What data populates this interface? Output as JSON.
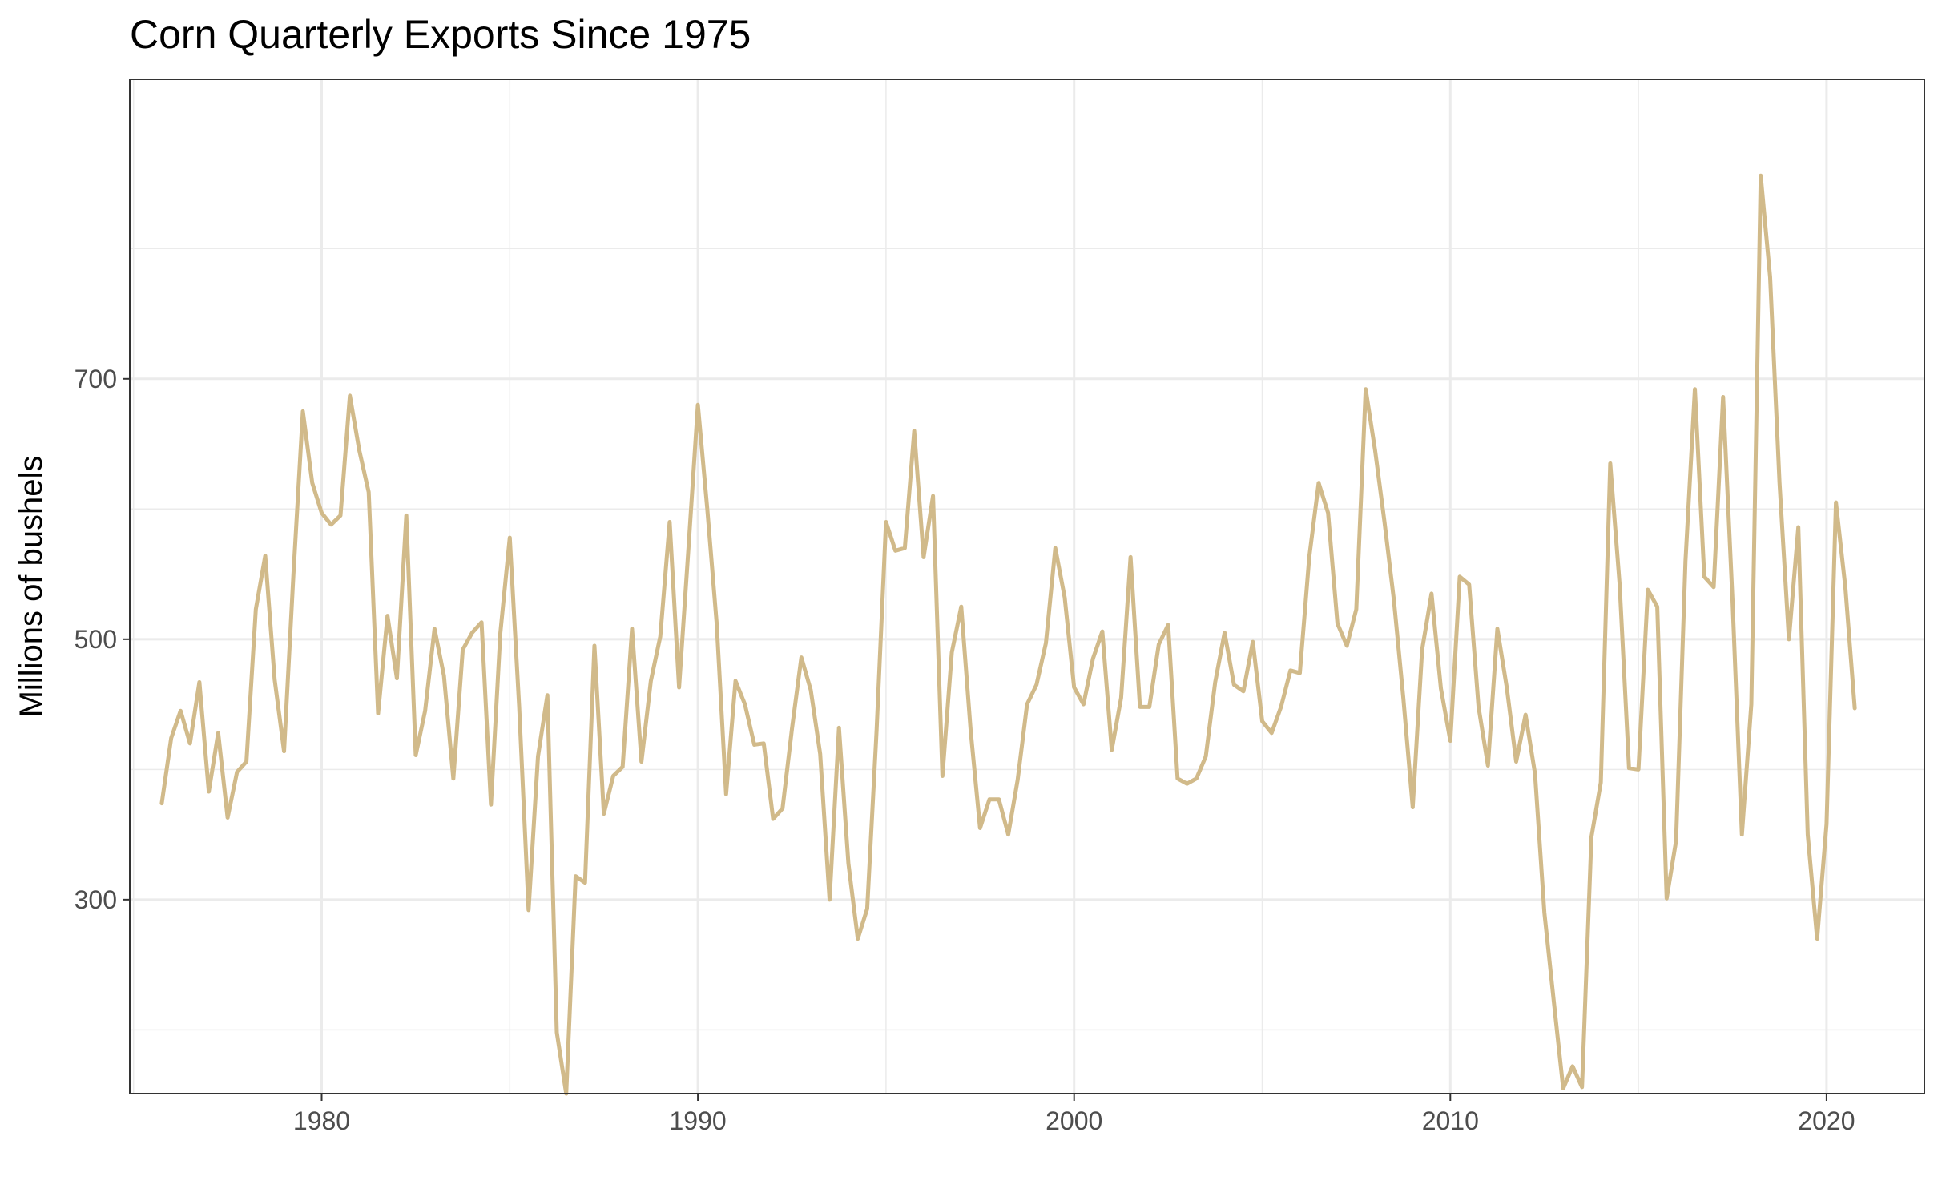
{
  "chart_data": {
    "type": "line",
    "title": "Corn Quarterly Exports Since 1975",
    "xlabel": "",
    "ylabel": "Millions of bushels",
    "xlim": [
      1974.9,
      1984.6
    ],
    "ylim": [
      151,
      930
    ],
    "x_ticks": [
      1980,
      1990,
      2000,
      2010,
      2020
    ],
    "x_tick_labels": [
      "1980",
      "1990",
      "2000",
      "2010",
      "2020"
    ],
    "y_ticks": [
      300,
      500,
      700
    ],
    "y_tick_labels": [
      "300",
      "500",
      "700"
    ],
    "grid": true,
    "legend": "none",
    "colors": {
      "line": "#d1ba8a",
      "grid": "#ebebeb",
      "border": "#333333"
    },
    "series": [
      {
        "x_start": 1975.75,
        "x_step": 0.25,
        "values": [
          374,
          424,
          445,
          420,
          467,
          383,
          428,
          363,
          398,
          406,
          523,
          564,
          469,
          414,
          550,
          675,
          620,
          597,
          588,
          595,
          687,
          645,
          613,
          443,
          518,
          470,
          595,
          411,
          445,
          508,
          472,
          393,
          492,
          505,
          513,
          373,
          505,
          578,
          448,
          292,
          410,
          457,
          198,
          151,
          318,
          313,
          495,
          366,
          395,
          402,
          508,
          406,
          468,
          502,
          590,
          463,
          570,
          680,
          600,
          512,
          381,
          468,
          450,
          419,
          420,
          362,
          370,
          431,
          486,
          461,
          412,
          300,
          432,
          328,
          270,
          293,
          430,
          590,
          568,
          570,
          660,
          563,
          610,
          395,
          490,
          525,
          430,
          355,
          377,
          377,
          350,
          392,
          450,
          465,
          497,
          570,
          532,
          463,
          450,
          485,
          506,
          415,
          455,
          563,
          448,
          448,
          496,
          511,
          393,
          389,
          393,
          410,
          467,
          505,
          465,
          460,
          498,
          437,
          428,
          448,
          476,
          474,
          563,
          620,
          597,
          512,
          495,
          523,
          692,
          645,
          590,
          530,
          455,
          371,
          492,
          535,
          462,
          422,
          548,
          542,
          448,
          403,
          508,
          463,
          406,
          442,
          397,
          290,
          222,
          155,
          172,
          156,
          348,
          390,
          635,
          542,
          401,
          400,
          538,
          525,
          301,
          345,
          560,
          692,
          548,
          540,
          686,
          530,
          350,
          450,
          856,
          778,
          620,
          500,
          586,
          350,
          270,
          358,
          605,
          540,
          447
        ]
      }
    ]
  }
}
